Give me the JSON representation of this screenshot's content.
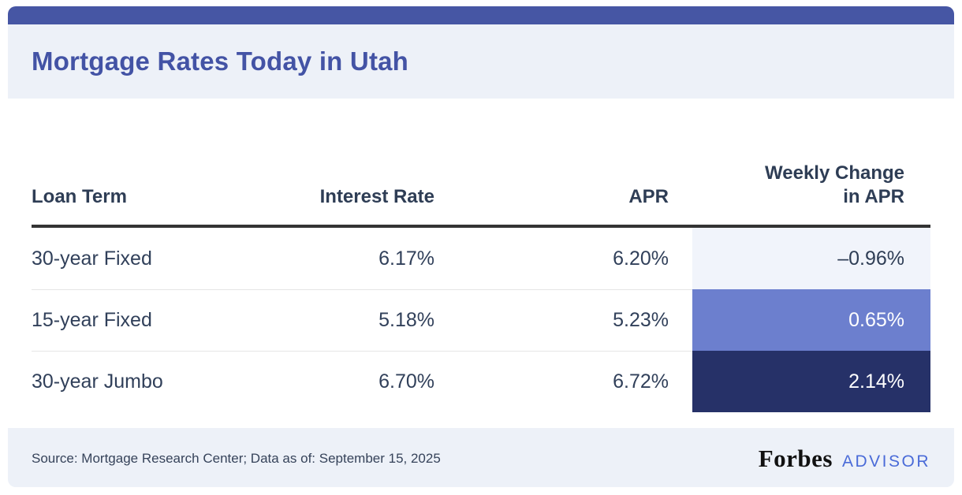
{
  "header": {
    "title": "Mortgage Rates Today in Utah"
  },
  "accent": {
    "top_bar_color": "#4656a4",
    "band_color": "#edf1f8",
    "title_color": "#4353a5"
  },
  "table": {
    "headers": {
      "loan_term": "Loan Term",
      "interest_rate": "Interest Rate",
      "apr": "APR",
      "weekly_change_line1": "Weekly Change",
      "weekly_change_line2": "in APR"
    },
    "rows": [
      {
        "term": "30-year Fixed",
        "interest_rate": "6.17%",
        "apr": "6.20%",
        "weekly_change": "–0.96%",
        "weekly_change_style": "light"
      },
      {
        "term": "15-year Fixed",
        "interest_rate": "5.18%",
        "apr": "5.23%",
        "weekly_change": "0.65%",
        "weekly_change_style": "medium"
      },
      {
        "term": "30-year Jumbo",
        "interest_rate": "6.70%",
        "apr": "6.72%",
        "weekly_change": "2.14%",
        "weekly_change_style": "dark"
      }
    ],
    "cell_colors": {
      "light": "#f1f4fb",
      "medium": "#6c7fce",
      "dark": "#263168"
    },
    "cell_text_colors": {
      "light": "#2e3d55",
      "medium": "#ffffff",
      "dark": "#ffffff"
    }
  },
  "footer": {
    "source": "Source: Mortgage Research Center; Data as of: September 15, 2025",
    "brand": {
      "forbes": "Forbes",
      "advisor": "ADVISOR"
    }
  },
  "chart_data": {
    "type": "table",
    "title": "Mortgage Rates Today in Utah",
    "columns": [
      "Loan Term",
      "Interest Rate",
      "APR",
      "Weekly Change in APR"
    ],
    "rows": [
      [
        "30-year Fixed",
        "6.17%",
        "6.20%",
        "-0.96%"
      ],
      [
        "15-year Fixed",
        "5.18%",
        "5.23%",
        "0.65%"
      ],
      [
        "30-year Jumbo",
        "6.70%",
        "6.72%",
        "2.14%"
      ]
    ],
    "interest_rate_pct": [
      6.17,
      5.18,
      6.7
    ],
    "apr_pct": [
      6.2,
      5.23,
      6.72
    ],
    "weekly_change_apr_pct": [
      -0.96,
      0.65,
      2.14
    ],
    "source": "Source: Mortgage Research Center; Data as of: September 15, 2025",
    "layout": "weekly-change column cells shaded: light for negative, medium blue for small positive, dark navy for larger positive"
  }
}
